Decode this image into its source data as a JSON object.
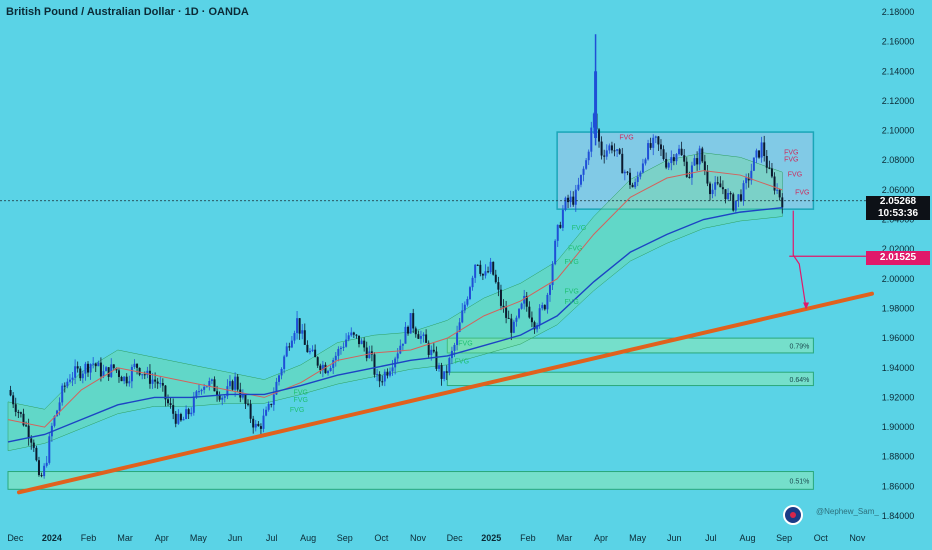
{
  "header": {
    "title": "British Pound / Australian Dollar · 1D · OANDA"
  },
  "credit": "@Nephew_Sam_",
  "chart_data": {
    "type": "candlestick",
    "ylim": [
      1.84,
      2.18
    ],
    "y_ticks": [
      "2.18000",
      "2.16000",
      "2.14000",
      "2.12000",
      "2.10000",
      "2.08000",
      "2.06000",
      "2.04000",
      "2.02000",
      "2.00000",
      "1.98000",
      "1.96000",
      "1.94000",
      "1.92000",
      "1.90000",
      "1.88000",
      "1.86000",
      "1.84000"
    ],
    "x_ticks": [
      "Dec",
      "2024",
      "Feb",
      "Mar",
      "Apr",
      "May",
      "Jun",
      "Jul",
      "Aug",
      "Sep",
      "Oct",
      "Nov",
      "Dec",
      "2025",
      "Feb",
      "Mar",
      "Apr",
      "May",
      "Jun",
      "Jul",
      "Aug",
      "Sep",
      "Oct",
      "Nov"
    ],
    "x_domain": [
      0,
      23
    ],
    "current_price": "2.05268",
    "countdown": "10:53:36",
    "target_price": "2.01525",
    "target_value": 2.01525,
    "current_value": 2.05268,
    "close_path": [
      [
        0,
        1.925
      ],
      [
        0.4,
        1.905
      ],
      [
        0.7,
        1.89
      ],
      [
        0.85,
        1.862
      ],
      [
        1.0,
        1.872
      ],
      [
        1.2,
        1.9
      ],
      [
        1.5,
        1.925
      ],
      [
        1.7,
        1.935
      ],
      [
        2.0,
        1.938
      ],
      [
        2.3,
        1.944
      ],
      [
        2.6,
        1.936
      ],
      [
        2.9,
        1.94
      ],
      [
        3.2,
        1.932
      ],
      [
        3.5,
        1.942
      ],
      [
        3.8,
        1.934
      ],
      [
        4.1,
        1.93
      ],
      [
        4.4,
        1.914
      ],
      [
        4.7,
        1.902
      ],
      [
        5.0,
        1.912
      ],
      [
        5.3,
        1.93
      ],
      [
        5.6,
        1.928
      ],
      [
        5.9,
        1.92
      ],
      [
        6.2,
        1.932
      ],
      [
        6.5,
        1.914
      ],
      [
        6.8,
        1.898
      ],
      [
        7.1,
        1.91
      ],
      [
        7.4,
        1.935
      ],
      [
        7.7,
        1.96
      ],
      [
        7.9,
        1.972
      ],
      [
        8.1,
        1.955
      ],
      [
        8.4,
        1.945
      ],
      [
        8.7,
        1.94
      ],
      [
        9.0,
        1.95
      ],
      [
        9.3,
        1.962
      ],
      [
        9.6,
        1.958
      ],
      [
        9.9,
        1.948
      ],
      [
        10.1,
        1.93
      ],
      [
        10.4,
        1.94
      ],
      [
        10.7,
        1.955
      ],
      [
        11.0,
        1.972
      ],
      [
        11.3,
        1.96
      ],
      [
        11.6,
        1.948
      ],
      [
        11.9,
        1.932
      ],
      [
        12.2,
        1.955
      ],
      [
        12.5,
        1.985
      ],
      [
        12.8,
        2.015
      ],
      [
        13.0,
        2.0
      ],
      [
        13.2,
        2.008
      ],
      [
        13.5,
        1.98
      ],
      [
        13.8,
        1.965
      ],
      [
        14.1,
        1.985
      ],
      [
        14.4,
        1.97
      ],
      [
        14.7,
        1.985
      ],
      [
        15.0,
        2.03
      ],
      [
        15.2,
        2.05
      ],
      [
        15.5,
        2.055
      ],
      [
        15.8,
        2.08
      ],
      [
        16.0,
        2.11
      ],
      [
        16.2,
        2.085
      ],
      [
        16.5,
        2.09
      ],
      [
        16.8,
        2.075
      ],
      [
        17.1,
        2.06
      ],
      [
        17.4,
        2.085
      ],
      [
        17.7,
        2.092
      ],
      [
        18.0,
        2.078
      ],
      [
        18.3,
        2.088
      ],
      [
        18.6,
        2.07
      ],
      [
        18.9,
        2.085
      ],
      [
        19.2,
        2.06
      ],
      [
        19.5,
        2.062
      ],
      [
        19.8,
        2.05
      ],
      [
        20.1,
        2.06
      ],
      [
        20.4,
        2.08
      ],
      [
        20.6,
        2.09
      ],
      [
        20.8,
        2.07
      ],
      [
        21.0,
        2.06
      ],
      [
        21.15,
        2.053
      ]
    ],
    "ma_fast": [
      [
        0,
        1.905
      ],
      [
        1.0,
        1.9
      ],
      [
        2.0,
        1.925
      ],
      [
        3.0,
        1.94
      ],
      [
        4.0,
        1.935
      ],
      [
        5.0,
        1.93
      ],
      [
        6.0,
        1.925
      ],
      [
        7.0,
        1.92
      ],
      [
        8.0,
        1.93
      ],
      [
        9.0,
        1.945
      ],
      [
        10.0,
        1.95
      ],
      [
        11.0,
        1.952
      ],
      [
        12.0,
        1.96
      ],
      [
        13.0,
        1.975
      ],
      [
        14.0,
        1.985
      ],
      [
        15.0,
        2.0
      ],
      [
        16.0,
        2.03
      ],
      [
        17.0,
        2.055
      ],
      [
        18.0,
        2.068
      ],
      [
        19.0,
        2.073
      ],
      [
        20.0,
        2.07
      ],
      [
        21.15,
        2.06
      ]
    ],
    "ma_slow": [
      [
        0,
        1.89
      ],
      [
        1.0,
        1.895
      ],
      [
        2.0,
        1.905
      ],
      [
        3.0,
        1.915
      ],
      [
        4.0,
        1.92
      ],
      [
        5.0,
        1.92
      ],
      [
        6.0,
        1.922
      ],
      [
        7.0,
        1.922
      ],
      [
        8.0,
        1.928
      ],
      [
        9.0,
        1.935
      ],
      [
        10.0,
        1.94
      ],
      [
        11.0,
        1.945
      ],
      [
        12.0,
        1.948
      ],
      [
        13.0,
        1.955
      ],
      [
        14.0,
        1.962
      ],
      [
        15.0,
        1.975
      ],
      [
        16.0,
        1.998
      ],
      [
        17.0,
        2.018
      ],
      [
        18.0,
        2.03
      ],
      [
        19.0,
        2.04
      ],
      [
        20.0,
        2.045
      ],
      [
        21.15,
        2.048
      ]
    ],
    "trendline": {
      "from": [
        0.3,
        1.856
      ],
      "to": [
        23.6,
        1.99
      ],
      "color": "#e0611d"
    },
    "range_box": {
      "x": [
        15.0,
        22.0
      ],
      "y": [
        2.047,
        2.099
      ]
    },
    "demand_zones": [
      {
        "x": [
          12.0,
          22.0
        ],
        "y": [
          1.95,
          1.96
        ],
        "label": "0.79%"
      },
      {
        "x": [
          12.0,
          22.0
        ],
        "y": [
          1.928,
          1.937
        ],
        "label": "0.64%"
      },
      {
        "x": [
          0.0,
          22.0
        ],
        "y": [
          1.858,
          1.87
        ],
        "label": "0.51%"
      }
    ],
    "fvg_labels": [
      {
        "x": 16.7,
        "y": 2.094,
        "text": "FVG",
        "color": "#cc2b5e"
      },
      {
        "x": 21.2,
        "y": 2.084,
        "text": "FVG",
        "color": "#cc2b5e"
      },
      {
        "x": 21.2,
        "y": 2.079,
        "text": "FVG",
        "color": "#cc2b5e"
      },
      {
        "x": 21.3,
        "y": 2.069,
        "text": "FVG",
        "color": "#cc2b5e"
      },
      {
        "x": 21.5,
        "y": 2.057,
        "text": "FVG",
        "color": "#cc2b5e"
      },
      {
        "x": 15.4,
        "y": 2.033,
        "text": "FVG",
        "color": "#1fbf73"
      },
      {
        "x": 15.3,
        "y": 2.019,
        "text": "FVG",
        "color": "#1fbf73"
      },
      {
        "x": 15.2,
        "y": 2.01,
        "text": "FVG",
        "color": "#1fbf73"
      },
      {
        "x": 15.2,
        "y": 1.99,
        "text": "FVG",
        "color": "#1fbf73"
      },
      {
        "x": 15.2,
        "y": 1.983,
        "text": "FVG",
        "color": "#1fbf73"
      },
      {
        "x": 12.3,
        "y": 1.955,
        "text": "FVG",
        "color": "#1fbf73"
      },
      {
        "x": 12.2,
        "y": 1.943,
        "text": "FVG",
        "color": "#1fbf73"
      },
      {
        "x": 7.8,
        "y": 1.922,
        "text": "FVG",
        "color": "#1fbf73"
      },
      {
        "x": 7.8,
        "y": 1.917,
        "text": "FVG",
        "color": "#1fbf73"
      },
      {
        "x": 7.7,
        "y": 1.91,
        "text": "FVG",
        "color": "#1fbf73"
      }
    ],
    "projection": {
      "from_x": 21.45,
      "y_start": 2.046,
      "y_mid": 2.016,
      "y_end": 1.98,
      "x_end": 21.8
    },
    "colors": {
      "background": "#5ad3e6",
      "ma_fast": "#d4625c",
      "ma_slow": "#1c44c4",
      "zone_fill": "#7fe3c2",
      "zone_stroke": "#2aa87a",
      "box_fill": "#8fc7e6",
      "box_stroke": "#1aa6b8",
      "target": "#e0196a",
      "bull": "#1f4fd6",
      "bear": "#0b1a2e"
    }
  }
}
